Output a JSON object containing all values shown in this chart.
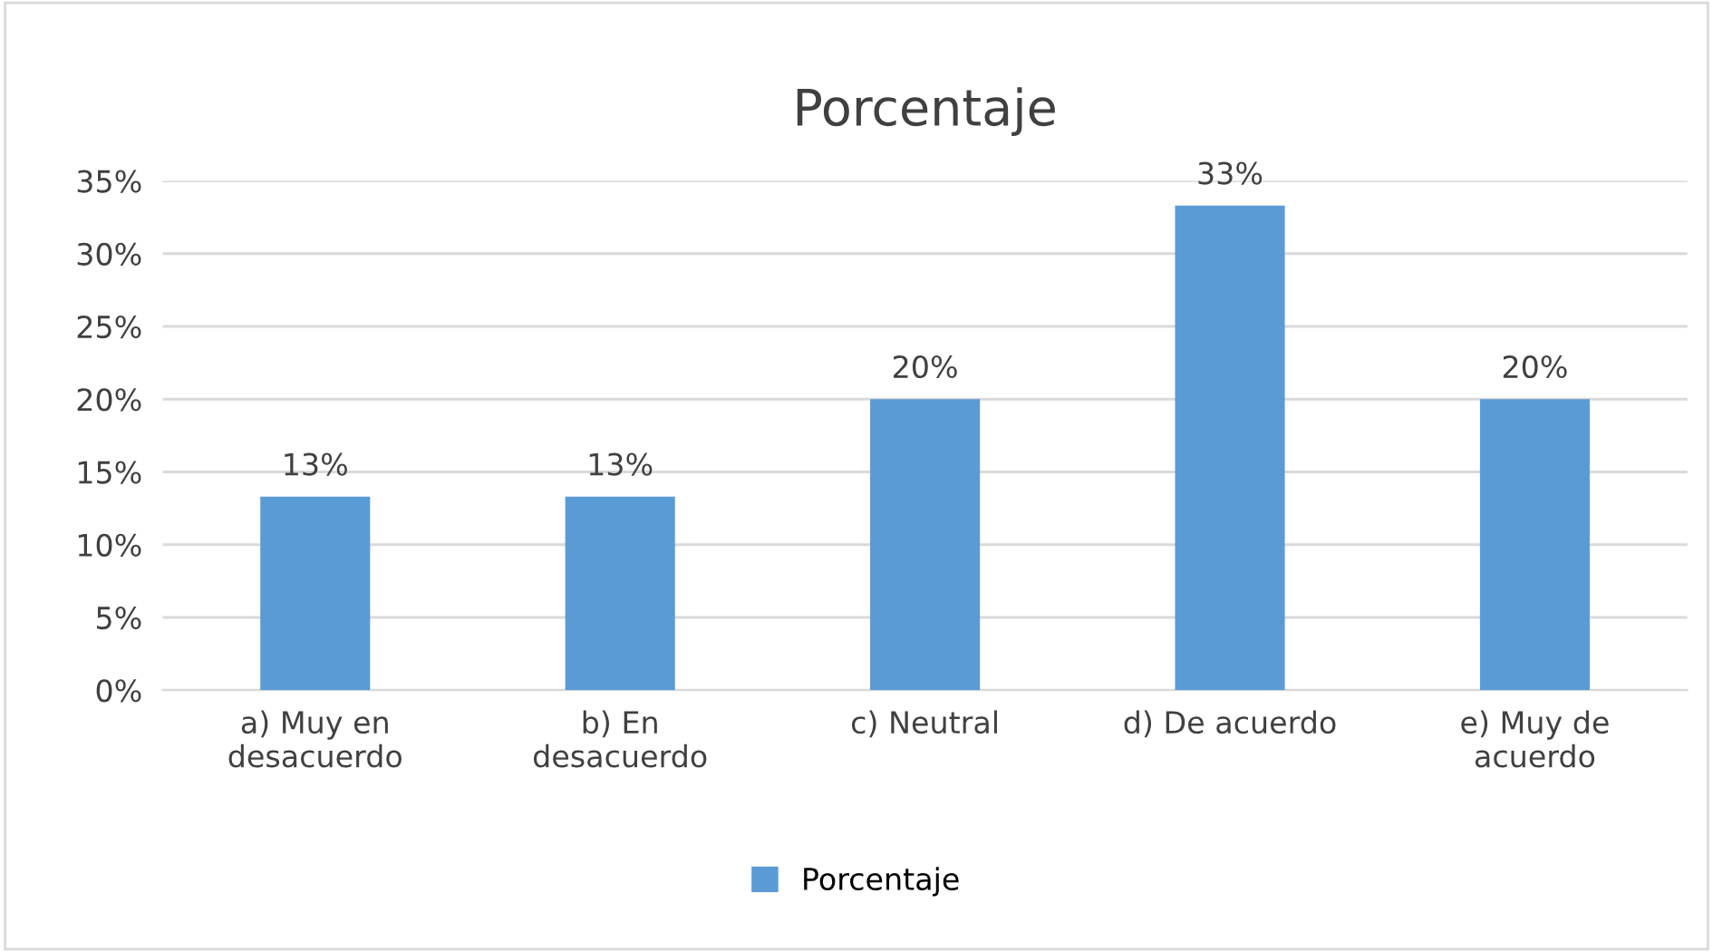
{
  "chart_data": {
    "type": "bar",
    "title": "Porcentaje",
    "categories": [
      "a) Muy en\ndesacuerdo",
      "b) En\ndesacuerdo",
      "c) Neutral",
      "d) De acuerdo",
      "e) Muy de\nacuerdo"
    ],
    "series": [
      {
        "name": "Porcentaje",
        "color": "#5b9bd5",
        "values": [
          13.3,
          13.3,
          20,
          33.3,
          20
        ],
        "value_labels": [
          "13%",
          "13%",
          "20%",
          "33%",
          "20%"
        ]
      }
    ],
    "ylim": [
      0,
      35
    ],
    "yticks": [
      {
        "value": 0,
        "label": "0%"
      },
      {
        "value": 5,
        "label": "5%"
      },
      {
        "value": 10,
        "label": "10%"
      },
      {
        "value": 15,
        "label": "15%"
      },
      {
        "value": 20,
        "label": "20%"
      },
      {
        "value": 25,
        "label": "25%"
      },
      {
        "value": 30,
        "label": "30%"
      },
      {
        "value": 35,
        "label": "35%"
      }
    ],
    "grid": "y",
    "legend": "bottom"
  }
}
